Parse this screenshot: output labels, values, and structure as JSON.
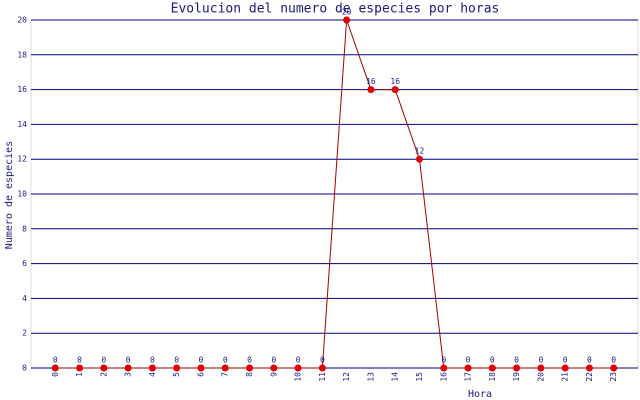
{
  "chart_data": {
    "type": "line",
    "title": "Evolucion del numero de especies por horas",
    "x_label": "Hora",
    "y_label": "Numero de especies",
    "x": [
      0,
      1,
      2,
      3,
      4,
      5,
      6,
      7,
      8,
      9,
      10,
      11,
      12,
      13,
      14,
      15,
      16,
      17,
      18,
      19,
      20,
      21,
      22,
      23
    ],
    "xlim": [
      -1,
      24
    ],
    "series": [
      {
        "name": "especies",
        "color": "#a00000",
        "values": [
          0,
          0,
          0,
          0,
          0,
          0,
          0,
          0,
          0,
          0,
          0,
          0,
          20,
          16,
          16,
          12,
          0,
          0,
          0,
          0,
          0,
          0,
          0,
          0
        ]
      }
    ],
    "ylim": [
      0,
      20
    ],
    "yticks": [
      0,
      2,
      4,
      6,
      8,
      10,
      12,
      14,
      16,
      18,
      20
    ],
    "grid": true,
    "grid_color": "#000080"
  }
}
